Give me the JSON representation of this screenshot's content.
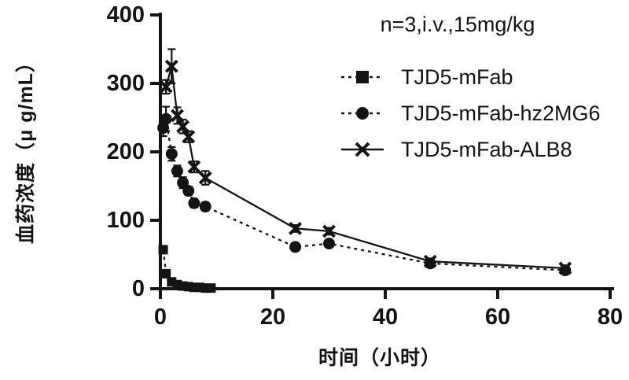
{
  "page": {
    "background": "#ffffff",
    "ink_color": "#141414"
  },
  "chart_data": {
    "type": "line",
    "title_annotation": "n=3,i.v.,15mg/kg",
    "xlabel": "时间（小时）",
    "ylabel": "血药浓度（μ g/mL）",
    "xlim": [
      0,
      80
    ],
    "ylim": [
      0,
      400
    ],
    "x_ticks": [
      0,
      20,
      40,
      60,
      80
    ],
    "y_ticks": [
      0,
      100,
      200,
      300,
      400
    ],
    "grid": false,
    "legend_position": "upper-right-inside",
    "series": [
      {
        "name": "TJD5-mFab",
        "marker": "square",
        "line_style": "dashed",
        "color": "#141414",
        "x": [
          0.5,
          1,
          2,
          3,
          4,
          5,
          6,
          7,
          8,
          9
        ],
        "y": [
          57,
          22,
          10,
          6,
          4,
          3,
          2,
          2,
          1,
          1
        ],
        "err": [
          5,
          3,
          2,
          1,
          1,
          1,
          1,
          1,
          1,
          1
        ]
      },
      {
        "name": "TJD5-mFab-hz2MG6",
        "marker": "circle",
        "line_style": "dashed",
        "color": "#141414",
        "x": [
          0.5,
          1,
          2,
          3,
          4,
          5,
          6,
          8,
          24,
          30,
          48,
          72
        ],
        "y": [
          235,
          248,
          197,
          172,
          155,
          143,
          125,
          120,
          61,
          66,
          37,
          27
        ],
        "err": [
          12,
          18,
          10,
          8,
          8,
          6,
          6,
          6,
          4,
          4,
          3,
          3
        ]
      },
      {
        "name": "TJD5-mFab-ALB8",
        "marker": "x",
        "line_style": "solid",
        "color": "#141414",
        "x": [
          1,
          2,
          3,
          4,
          5,
          6,
          8,
          24,
          30,
          48,
          72
        ],
        "y": [
          295,
          325,
          253,
          237,
          222,
          178,
          162,
          88,
          84,
          40,
          30
        ],
        "err": [
          10,
          25,
          12,
          10,
          8,
          8,
          10,
          5,
          5,
          4,
          3
        ]
      }
    ]
  }
}
